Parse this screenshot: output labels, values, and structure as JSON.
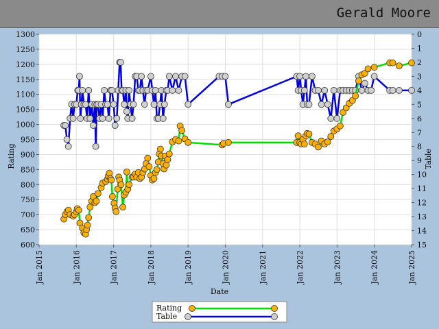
{
  "header": {
    "player_name": "Gerald Moore"
  },
  "colors": {
    "background": "#a9c4dc",
    "titlebar": "#8a8a8a",
    "rating_line": "#00e000",
    "rating_marker": "#ffb000",
    "table_line": "#0000e0",
    "table_marker": "#d0d0d0",
    "grid": "#dddddd"
  },
  "chart_data": {
    "type": "line",
    "xlabel": "Date",
    "ylabel": "Rating",
    "y2label": "Table",
    "xlim": [
      "2015-01-01",
      "2025-01-01"
    ],
    "ylim": [
      600,
      1300
    ],
    "y2lim": [
      0,
      15
    ],
    "y2_inverted": true,
    "grid": true,
    "legend_position": "bottom-center",
    "x_ticks": [
      "Jan 2015",
      "Jan 2016",
      "Jan 2017",
      "Jan 2018",
      "Jan 2019",
      "Jan 2020",
      "Jan 2021",
      "Jan 2022",
      "Jan 2023",
      "Jan 2024",
      "Jan 2025"
    ],
    "y_ticks": [
      600,
      650,
      700,
      750,
      800,
      850,
      900,
      950,
      1000,
      1050,
      1100,
      1150,
      1200,
      1250,
      1300
    ],
    "y2_ticks": [
      0,
      1,
      2,
      3,
      4,
      5,
      6,
      7,
      8,
      9,
      10,
      11,
      12,
      13,
      14,
      15
    ],
    "series": [
      {
        "name": "Rating",
        "axis": "left",
        "points": [
          [
            "2015-09-01",
            685
          ],
          [
            "2015-09-15",
            700
          ],
          [
            "2015-10-01",
            710
          ],
          [
            "2015-10-15",
            715
          ],
          [
            "2015-11-01",
            700
          ],
          [
            "2015-12-01",
            695
          ],
          [
            "2015-12-15",
            700
          ],
          [
            "2016-01-01",
            710
          ],
          [
            "2016-01-10",
            720
          ],
          [
            "2016-01-25",
            715
          ],
          [
            "2016-02-05",
            672
          ],
          [
            "2016-03-01",
            655
          ],
          [
            "2016-03-15",
            640
          ],
          [
            "2016-04-01",
            635
          ],
          [
            "2016-04-10",
            650
          ],
          [
            "2016-04-20",
            665
          ],
          [
            "2016-05-01",
            690
          ],
          [
            "2016-05-15",
            725
          ],
          [
            "2016-06-01",
            745
          ],
          [
            "2016-06-15",
            760
          ],
          [
            "2016-07-01",
            740
          ],
          [
            "2016-07-15",
            745
          ],
          [
            "2016-08-01",
            770
          ],
          [
            "2016-09-01",
            790
          ],
          [
            "2016-09-15",
            805
          ],
          [
            "2016-10-15",
            810
          ],
          [
            "2016-11-01",
            818
          ],
          [
            "2016-11-10",
            828
          ],
          [
            "2016-11-20",
            838
          ],
          [
            "2016-12-01",
            820
          ],
          [
            "2016-12-10",
            815
          ],
          [
            "2016-12-20",
            760
          ],
          [
            "2017-01-05",
            738
          ],
          [
            "2017-01-15",
            722
          ],
          [
            "2017-01-25",
            710
          ],
          [
            "2017-02-10",
            785
          ],
          [
            "2017-02-20",
            825
          ],
          [
            "2017-03-01",
            815
          ],
          [
            "2017-03-15",
            800
          ],
          [
            "2017-04-01",
            725
          ],
          [
            "2017-04-15",
            765
          ],
          [
            "2017-05-01",
            775
          ],
          [
            "2017-05-10",
            842
          ],
          [
            "2017-05-20",
            785
          ],
          [
            "2017-06-01",
            800
          ],
          [
            "2017-07-01",
            825
          ],
          [
            "2017-07-15",
            825
          ],
          [
            "2017-08-01",
            835
          ],
          [
            "2017-08-15",
            825
          ],
          [
            "2017-09-01",
            840
          ],
          [
            "2017-09-15",
            820
          ],
          [
            "2017-10-01",
            825
          ],
          [
            "2017-10-15",
            840
          ],
          [
            "2017-11-01",
            852
          ],
          [
            "2017-11-15",
            870
          ],
          [
            "2017-12-01",
            888
          ],
          [
            "2017-12-15",
            860
          ],
          [
            "2018-01-01",
            830
          ],
          [
            "2018-01-15",
            815
          ],
          [
            "2018-02-01",
            820
          ],
          [
            "2018-02-15",
            840
          ],
          [
            "2018-03-01",
            850
          ],
          [
            "2018-03-15",
            875
          ],
          [
            "2018-03-25",
            902
          ],
          [
            "2018-04-05",
            918
          ],
          [
            "2018-04-15",
            895
          ],
          [
            "2018-05-01",
            870
          ],
          [
            "2018-05-10",
            852
          ],
          [
            "2018-05-20",
            895
          ],
          [
            "2018-06-01",
            865
          ],
          [
            "2018-06-15",
            883
          ],
          [
            "2018-07-01",
            902
          ],
          [
            "2018-08-01",
            942
          ],
          [
            "2018-09-01",
            950
          ],
          [
            "2018-10-01",
            945
          ],
          [
            "2018-10-15",
            995
          ],
          [
            "2018-11-01",
            980
          ],
          [
            "2018-12-01",
            952
          ],
          [
            "2019-01-01",
            940
          ],
          [
            "2019-12-01",
            932
          ],
          [
            "2019-12-15",
            937
          ],
          [
            "2020-02-01",
            940
          ],
          [
            "2021-12-01",
            940
          ],
          [
            "2021-12-15",
            962
          ],
          [
            "2022-01-01",
            940
          ],
          [
            "2022-01-15",
            935
          ],
          [
            "2022-02-01",
            950
          ],
          [
            "2022-02-15",
            935
          ],
          [
            "2022-03-01",
            962
          ],
          [
            "2022-03-15",
            970
          ],
          [
            "2022-04-01",
            968
          ],
          [
            "2022-05-01",
            940
          ],
          [
            "2022-06-01",
            935
          ],
          [
            "2022-07-01",
            925
          ],
          [
            "2022-08-01",
            945
          ],
          [
            "2022-09-01",
            935
          ],
          [
            "2022-10-01",
            942
          ],
          [
            "2022-11-01",
            960
          ],
          [
            "2022-12-01",
            978
          ],
          [
            "2023-01-01",
            985
          ],
          [
            "2023-02-01",
            995
          ],
          [
            "2023-03-01",
            1040
          ],
          [
            "2023-04-01",
            1055
          ],
          [
            "2023-05-01",
            1070
          ],
          [
            "2023-06-01",
            1080
          ],
          [
            "2023-07-01",
            1095
          ],
          [
            "2023-08-01",
            1145
          ],
          [
            "2023-09-01",
            1165
          ],
          [
            "2023-10-01",
            1170
          ],
          [
            "2023-11-01",
            1185
          ],
          [
            "2024-01-01",
            1190
          ],
          [
            "2024-06-01",
            1205
          ],
          [
            "2024-07-01",
            1205
          ],
          [
            "2024-09-01",
            1195
          ],
          [
            "2025-01-01",
            1205
          ]
        ]
      },
      {
        "name": "Table",
        "axis": "right",
        "points": [
          [
            "2015-09-01",
            6.5
          ],
          [
            "2015-09-15",
            6.5
          ],
          [
            "2015-10-01",
            7.5
          ],
          [
            "2015-10-15",
            8
          ],
          [
            "2015-11-01",
            6
          ],
          [
            "2015-11-15",
            5
          ],
          [
            "2015-12-01",
            6
          ],
          [
            "2015-12-15",
            5
          ],
          [
            "2016-01-01",
            5
          ],
          [
            "2016-01-15",
            4
          ],
          [
            "2016-01-25",
            4
          ],
          [
            "2016-02-01",
            3
          ],
          [
            "2016-02-10",
            6
          ],
          [
            "2016-02-20",
            5
          ],
          [
            "2016-03-01",
            4
          ],
          [
            "2016-03-15",
            5
          ],
          [
            "2016-04-01",
            5
          ],
          [
            "2016-04-15",
            6
          ],
          [
            "2016-05-01",
            4
          ],
          [
            "2016-05-15",
            6
          ],
          [
            "2016-06-01",
            5
          ],
          [
            "2016-06-15",
            6.5
          ],
          [
            "2016-07-01",
            5
          ],
          [
            "2016-07-10",
            8
          ],
          [
            "2016-07-20",
            5
          ],
          [
            "2016-08-01",
            5
          ],
          [
            "2016-08-15",
            6
          ],
          [
            "2016-09-01",
            5
          ],
          [
            "2016-09-15",
            6
          ],
          [
            "2016-10-01",
            4
          ],
          [
            "2016-10-15",
            5
          ],
          [
            "2016-11-01",
            5
          ],
          [
            "2016-11-15",
            6
          ],
          [
            "2016-12-01",
            4
          ],
          [
            "2016-12-15",
            4
          ],
          [
            "2017-01-01",
            5
          ],
          [
            "2017-01-15",
            6.5
          ],
          [
            "2017-02-01",
            6
          ],
          [
            "2017-02-15",
            4
          ],
          [
            "2017-03-01",
            2
          ],
          [
            "2017-03-10",
            2
          ],
          [
            "2017-03-20",
            4
          ],
          [
            "2017-04-01",
            4
          ],
          [
            "2017-04-15",
            5
          ],
          [
            "2017-05-01",
            4
          ],
          [
            "2017-05-10",
            5.5
          ],
          [
            "2017-05-20",
            6
          ],
          [
            "2017-06-01",
            4
          ],
          [
            "2017-06-15",
            5
          ],
          [
            "2017-07-01",
            6
          ],
          [
            "2017-07-15",
            5
          ],
          [
            "2017-08-01",
            3
          ],
          [
            "2017-08-15",
            3
          ],
          [
            "2017-09-01",
            4
          ],
          [
            "2017-09-15",
            4
          ],
          [
            "2017-10-01",
            3
          ],
          [
            "2017-10-15",
            4
          ],
          [
            "2017-11-01",
            5
          ],
          [
            "2017-11-15",
            4
          ],
          [
            "2017-12-01",
            4
          ],
          [
            "2018-01-01",
            3
          ],
          [
            "2018-01-15",
            4
          ],
          [
            "2018-02-01",
            5
          ],
          [
            "2018-02-15",
            4
          ],
          [
            "2018-03-01",
            6
          ],
          [
            "2018-03-15",
            6
          ],
          [
            "2018-04-01",
            5
          ],
          [
            "2018-04-15",
            4
          ],
          [
            "2018-05-01",
            6
          ],
          [
            "2018-05-15",
            5
          ],
          [
            "2018-06-01",
            4
          ],
          [
            "2018-06-15",
            4
          ],
          [
            "2018-07-01",
            3
          ],
          [
            "2018-08-01",
            4
          ],
          [
            "2018-09-01",
            3
          ],
          [
            "2018-10-01",
            4
          ],
          [
            "2018-11-01",
            3
          ],
          [
            "2018-12-01",
            3
          ],
          [
            "2019-01-01",
            5
          ],
          [
            "2019-11-01",
            3
          ],
          [
            "2019-12-01",
            3
          ],
          [
            "2020-01-01",
            3
          ],
          [
            "2020-02-01",
            5
          ],
          [
            "2021-12-01",
            3
          ],
          [
            "2021-12-15",
            4
          ],
          [
            "2022-01-01",
            3
          ],
          [
            "2022-01-15",
            4
          ],
          [
            "2022-02-01",
            5
          ],
          [
            "2022-02-15",
            4
          ],
          [
            "2022-03-01",
            3
          ],
          [
            "2022-03-15",
            5
          ],
          [
            "2022-04-01",
            5
          ],
          [
            "2022-05-01",
            3
          ],
          [
            "2022-06-01",
            4
          ],
          [
            "2022-07-01",
            4
          ],
          [
            "2022-08-01",
            5
          ],
          [
            "2022-09-01",
            4
          ],
          [
            "2022-10-01",
            5
          ],
          [
            "2022-11-01",
            6
          ],
          [
            "2022-12-01",
            4
          ],
          [
            "2023-01-01",
            6
          ],
          [
            "2023-02-01",
            4
          ],
          [
            "2023-03-01",
            4
          ],
          [
            "2023-04-01",
            4
          ],
          [
            "2023-05-01",
            4
          ],
          [
            "2023-06-01",
            4
          ],
          [
            "2023-07-01",
            4
          ],
          [
            "2023-08-01",
            3
          ],
          [
            "2023-09-01",
            4
          ],
          [
            "2023-10-01",
            3.5
          ],
          [
            "2023-11-01",
            4
          ],
          [
            "2023-12-01",
            4
          ],
          [
            "2024-01-01",
            3
          ],
          [
            "2024-06-01",
            4
          ],
          [
            "2024-07-01",
            4
          ],
          [
            "2024-09-01",
            4
          ],
          [
            "2025-01-01",
            4
          ]
        ]
      }
    ]
  }
}
